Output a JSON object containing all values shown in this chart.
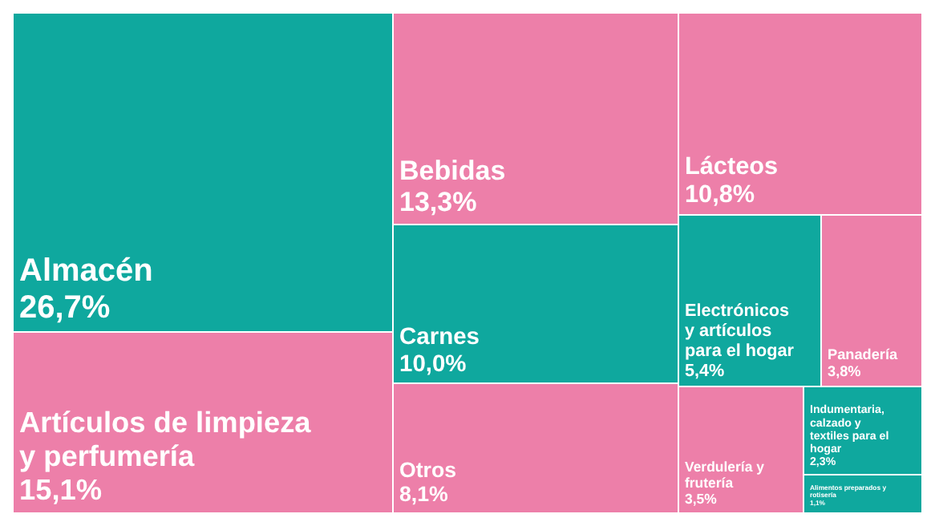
{
  "chart_data": {
    "type": "other",
    "categories": [
      "Almacén",
      "Artículos de limpieza y perfumería",
      "Bebidas",
      "Carnes",
      "Otros",
      "Lácteos",
      "Electrónicos y artículos para el hogar",
      "Panadería",
      "Verdulería y frutería",
      "Indumentaria, calzado y textiles para el hogar",
      "Alimentos preparados y rotisería"
    ],
    "values": [
      26.7,
      15.1,
      13.3,
      10.0,
      8.1,
      10.8,
      5.4,
      3.8,
      3.5,
      2.3,
      1.1
    ],
    "value_labels": [
      "26,7%",
      "15,1%",
      "13,3%",
      "10,0%",
      "8,1%",
      "10,8%",
      "5,4%",
      "3,8%",
      "3,5%",
      "2,3%",
      "1,1%"
    ],
    "colors": [
      "#0fa89e",
      "#ed7fa9",
      "#ed7fa9",
      "#0fa89e",
      "#ed7fa9",
      "#ed7fa9",
      "#0fa89e",
      "#ed7fa9",
      "#ed7fa9",
      "#0fa89e",
      "#0fa89e"
    ]
  }
}
